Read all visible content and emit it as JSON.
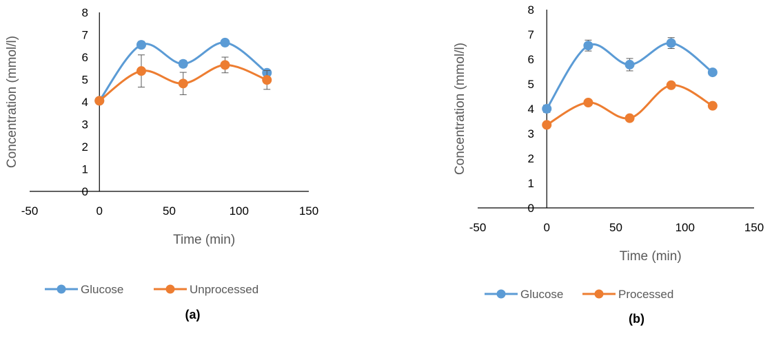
{
  "chart_data": [
    {
      "type": "line",
      "panel_label": "(a)",
      "xlabel": "Time (min)",
      "ylabel": "Concentration (mmol/l)",
      "xlim": [
        -50,
        150
      ],
      "ylim": [
        0,
        8
      ],
      "xticks": [
        -50,
        0,
        50,
        100,
        150
      ],
      "yticks": [
        0,
        1,
        2,
        3,
        4,
        5,
        6,
        7,
        8
      ],
      "x": [
        0,
        30,
        60,
        90,
        120
      ],
      "smoothed": true,
      "legend_position": "bottom",
      "grid": false,
      "series": [
        {
          "name": "Glucose",
          "color": "#5B9BD5",
          "values": [
            4.05,
            6.55,
            5.7,
            6.65,
            5.3
          ],
          "errors": [
            0,
            0.15,
            0.15,
            0.1,
            0.1
          ]
        },
        {
          "name": "Unprocessed",
          "color": "#ED7D31",
          "values": [
            4.05,
            5.38,
            4.82,
            5.65,
            4.98
          ],
          "errors": [
            0,
            0.72,
            0.5,
            0.35,
            0.42
          ]
        }
      ]
    },
    {
      "type": "line",
      "panel_label": "(b)",
      "xlabel": "Time (min)",
      "ylabel": "Concentration (mmol/l)",
      "xlim": [
        -50,
        150
      ],
      "ylim": [
        0,
        8
      ],
      "xticks": [
        -50,
        0,
        50,
        100,
        150
      ],
      "yticks": [
        0,
        1,
        2,
        3,
        4,
        5,
        6,
        7,
        8
      ],
      "x": [
        0,
        30,
        60,
        90,
        120
      ],
      "smoothed": true,
      "legend_position": "bottom",
      "grid": false,
      "series": [
        {
          "name": "Glucose",
          "color": "#5B9BD5",
          "values": [
            4.0,
            6.55,
            5.78,
            6.65,
            5.47
          ],
          "errors": [
            0.15,
            0.22,
            0.25,
            0.22,
            0.12
          ]
        },
        {
          "name": "Processed",
          "color": "#ED7D31",
          "values": [
            3.35,
            4.25,
            3.62,
            4.95,
            4.12
          ],
          "errors": [
            0.05,
            0.1,
            0.05,
            0.05,
            0.12
          ]
        }
      ]
    }
  ]
}
